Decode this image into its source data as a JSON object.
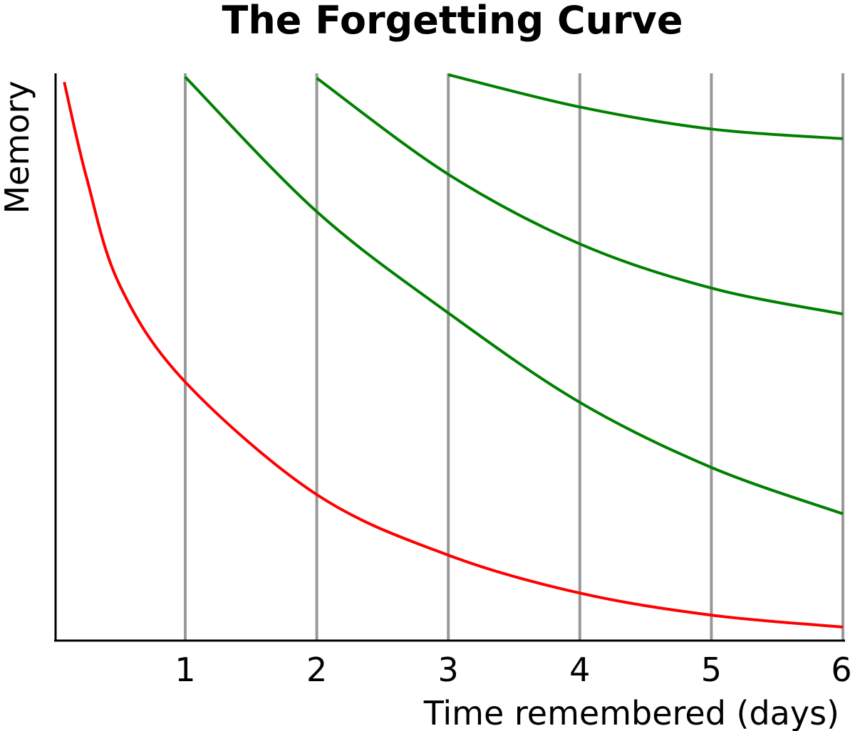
{
  "chart_data": {
    "type": "line",
    "title": "The Forgetting Curve",
    "xlabel": "Time remembered (days)",
    "ylabel": "Memory",
    "xlim": [
      0,
      6
    ],
    "ylim": [
      0,
      100
    ],
    "x_ticks": [
      "1",
      "2",
      "3",
      "4",
      "5",
      "6"
    ],
    "x_tick_values": [
      1,
      2,
      3,
      4,
      5,
      6
    ],
    "grid": "vertical lines at each day",
    "legend": "none",
    "colors": {
      "initial": "#ff0000",
      "review": "#008000",
      "grid": "#999999",
      "axis": "#000000"
    },
    "series": [
      {
        "color": "#ff0000",
        "x": [
          0.08,
          0.25,
          0.5,
          1,
          2,
          3,
          4,
          5,
          6
        ],
        "y": [
          98.7,
          81.8,
          62.9,
          45.7,
          25.8,
          15.1,
          8.4,
          4.5,
          2.4
        ]
      },
      {
        "color": "#008000",
        "x": [
          1,
          2,
          3,
          4,
          5,
          6
        ],
        "y": [
          99.6,
          75.8,
          57.9,
          42.1,
          30.6,
          22.4
        ]
      },
      {
        "color": "#008000",
        "x": [
          2,
          3,
          4,
          5,
          6
        ],
        "y": [
          99.4,
          82.4,
          70.1,
          62.3,
          57.7
        ]
      },
      {
        "color": "#008000",
        "x": [
          3,
          4,
          5,
          6
        ],
        "y": [
          100,
          94.3,
          90.4,
          88.7
        ]
      }
    ]
  }
}
